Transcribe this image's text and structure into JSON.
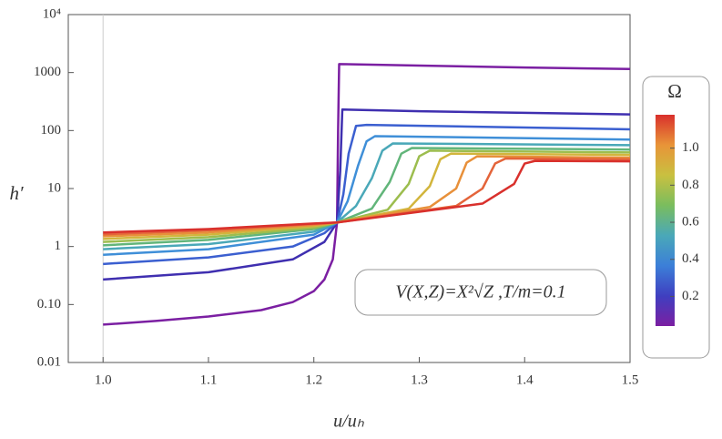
{
  "chart_data": {
    "type": "line",
    "xlabel": "u/uₕ",
    "ylabel": "h′",
    "annotation": "V(X,Z)=X²√Z ,T/m=0.1",
    "xlim": [
      0.967,
      1.5
    ],
    "ylim": [
      0.01,
      10000
    ],
    "ylog": true,
    "xticks": [
      {
        "value": 1,
        "label": "1.0"
      },
      1.1,
      1.2,
      1.3,
      1.4,
      1.5
    ],
    "yticks": [
      0.01,
      {
        "value": 0.1,
        "label": "0.10"
      },
      1,
      10,
      100,
      1000,
      {
        "value": 10000,
        "label": "10⁴"
      }
    ],
    "reference_line_x": 1,
    "series": [
      {
        "color": "#7b1fa2",
        "x": [
          1.0,
          1.05,
          1.1,
          1.15,
          1.18,
          1.2,
          1.21,
          1.218,
          1.222,
          1.223,
          1.224,
          1.3,
          1.4,
          1.5
        ],
        "values": [
          0.045,
          0.052,
          0.062,
          0.08,
          0.11,
          0.17,
          0.27,
          0.6,
          2.6,
          100,
          1400,
          1320,
          1220,
          1150
        ]
      },
      {
        "color": "#3f2fb0",
        "x": [
          1.0,
          1.1,
          1.18,
          1.21,
          1.222,
          1.225,
          1.227,
          1.3,
          1.5
        ],
        "values": [
          0.27,
          0.36,
          0.6,
          1.2,
          2.6,
          20,
          230,
          215,
          190
        ]
      },
      {
        "color": "#3b5fd0",
        "x": [
          1.0,
          1.1,
          1.18,
          1.21,
          1.222,
          1.228,
          1.233,
          1.24,
          1.25,
          1.5
        ],
        "values": [
          0.5,
          0.65,
          1.0,
          1.7,
          2.6,
          8,
          40,
          120,
          125,
          105
        ]
      },
      {
        "color": "#3f8fd8",
        "x": [
          1.0,
          1.1,
          1.2,
          1.222,
          1.232,
          1.242,
          1.25,
          1.258,
          1.5
        ],
        "values": [
          0.72,
          0.9,
          1.6,
          2.6,
          6,
          25,
          65,
          80,
          70
        ]
      },
      {
        "color": "#4aa8b8",
        "x": [
          1.0,
          1.1,
          1.2,
          1.222,
          1.24,
          1.255,
          1.265,
          1.275,
          1.5
        ],
        "values": [
          0.9,
          1.1,
          1.8,
          2.6,
          5,
          15,
          45,
          60,
          56
        ]
      },
      {
        "color": "#62b57a",
        "x": [
          1.0,
          1.1,
          1.2,
          1.222,
          1.255,
          1.272,
          1.283,
          1.293,
          1.5
        ],
        "values": [
          1.05,
          1.3,
          2,
          2.6,
          4.5,
          13,
          40,
          50,
          47
        ]
      },
      {
        "color": "#9cbd4e",
        "x": [
          1.0,
          1.1,
          1.2,
          1.222,
          1.27,
          1.29,
          1.3,
          1.31,
          1.5
        ],
        "values": [
          1.2,
          1.45,
          2.1,
          2.6,
          4.3,
          12,
          36,
          45,
          42
        ]
      },
      {
        "color": "#d2b53c",
        "x": [
          1.0,
          1.1,
          1.2,
          1.222,
          1.29,
          1.31,
          1.32,
          1.33,
          1.5
        ],
        "values": [
          1.35,
          1.6,
          2.25,
          2.6,
          4.5,
          11,
          32,
          40,
          38
        ]
      },
      {
        "color": "#e8903a",
        "x": [
          1.0,
          1.1,
          1.2,
          1.222,
          1.31,
          1.335,
          1.345,
          1.355,
          1.5
        ],
        "values": [
          1.5,
          1.75,
          2.35,
          2.6,
          4.8,
          10,
          28,
          36,
          34
        ]
      },
      {
        "color": "#e4643a",
        "x": [
          1.0,
          1.1,
          1.2,
          1.222,
          1.335,
          1.36,
          1.372,
          1.382,
          1.5
        ],
        "values": [
          1.62,
          1.9,
          2.45,
          2.6,
          5,
          10,
          27,
          33,
          32
        ]
      },
      {
        "color": "#d9302c",
        "x": [
          1.0,
          1.1,
          1.2,
          1.222,
          1.36,
          1.39,
          1.4,
          1.41,
          1.5
        ],
        "values": [
          1.75,
          2.0,
          2.5,
          2.6,
          5.5,
          12,
          27,
          30,
          29.5
        ]
      }
    ],
    "colorbar": {
      "title": "Ω",
      "lim": [
        0.04,
        1.18
      ],
      "ticks": [
        0.2,
        0.4,
        0.6,
        0.8,
        {
          "value": 1,
          "label": "1.0"
        }
      ],
      "colors": [
        "#7b1fa2",
        "#3f3fc0",
        "#3c7fd8",
        "#4aa8b8",
        "#7abd5e",
        "#c9c040",
        "#e89438",
        "#d9302c"
      ]
    }
  }
}
